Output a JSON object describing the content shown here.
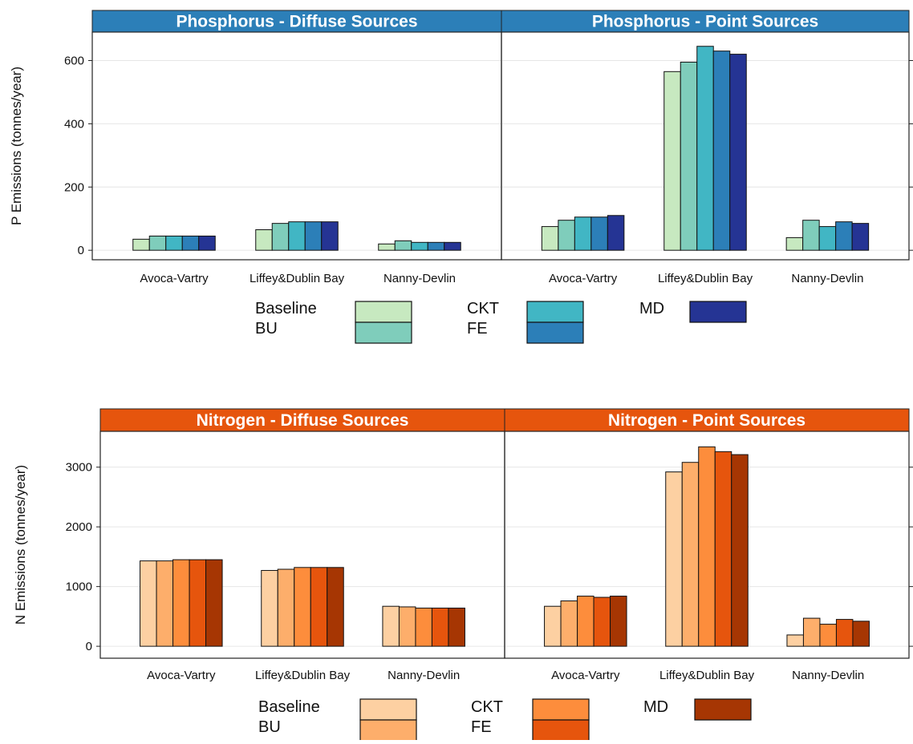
{
  "chart_data": [
    {
      "type": "bar",
      "ylabel": "P Emissions (tonnes/year)",
      "ylim": [
        -30,
        690
      ],
      "yticks": [
        0,
        200,
        400,
        600
      ],
      "grid": true,
      "categories": [
        "Avoca-Vartry",
        "Liffey&Dublin Bay",
        "Nanny-Devlin"
      ],
      "series_names": [
        "Baseline",
        "BU",
        "CKT",
        "FE",
        "MD"
      ],
      "colors": [
        "#c7e9c0",
        "#7fcdbb",
        "#41b6c4",
        "#2c7fb8",
        "#253494"
      ],
      "legend_position": "bottom",
      "panels": [
        {
          "strip": "Phosphorus - Diffuse Sources",
          "strip_color": "#2c7fb8",
          "values": [
            [
              35,
              45,
              45,
              45,
              45
            ],
            [
              65,
              85,
              90,
              90,
              90
            ],
            [
              20,
              30,
              25,
              25,
              25
            ]
          ]
        },
        {
          "strip": "Phosphorus - Point Sources",
          "strip_color": "#2c7fb8",
          "values": [
            [
              75,
              95,
              105,
              105,
              110
            ],
            [
              565,
              595,
              645,
              630,
              620
            ],
            [
              40,
              95,
              75,
              90,
              85
            ]
          ]
        }
      ]
    },
    {
      "type": "bar",
      "ylabel": "N Emissions (tonnes/year)",
      "ylim": [
        -200,
        3600
      ],
      "yticks": [
        0,
        1000,
        2000,
        3000
      ],
      "grid": true,
      "categories": [
        "Avoca-Vartry",
        "Liffey&Dublin Bay",
        "Nanny-Devlin"
      ],
      "series_names": [
        "Baseline",
        "BU",
        "CKT",
        "FE",
        "MD"
      ],
      "colors": [
        "#fdd0a2",
        "#fdae6b",
        "#fd8d3c",
        "#e6550d",
        "#a63603"
      ],
      "legend_position": "bottom",
      "panels": [
        {
          "strip": "Nitrogen - Diffuse Sources",
          "strip_color": "#e6550d",
          "values": [
            [
              1430,
              1430,
              1450,
              1450,
              1450
            ],
            [
              1270,
              1290,
              1320,
              1320,
              1320
            ],
            [
              670,
              660,
              640,
              640,
              640
            ]
          ]
        },
        {
          "strip": "Nitrogen - Point Sources",
          "strip_color": "#e6550d",
          "values": [
            [
              670,
              760,
              840,
              820,
              840
            ],
            [
              2920,
              3080,
              3340,
              3260,
              3210
            ],
            [
              190,
              470,
              370,
              450,
              420
            ]
          ]
        }
      ]
    }
  ]
}
